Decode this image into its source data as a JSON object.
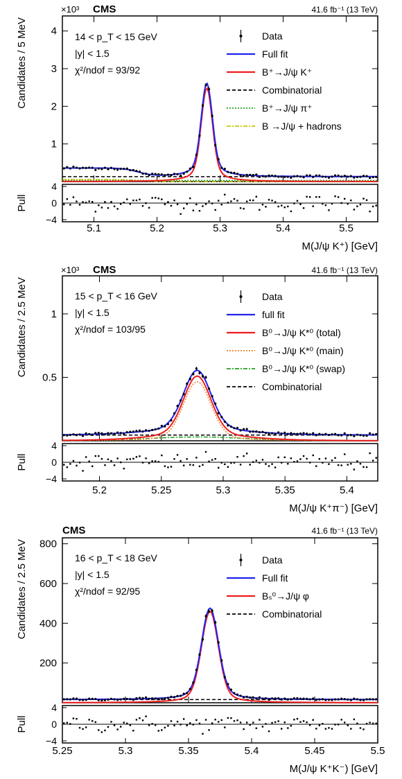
{
  "chart_data": [
    {
      "type": "line",
      "experiment": "CMS",
      "lumi": "41.6 fb⁻¹ (13 TeV)",
      "multiplier": "×10³",
      "kinematic": [
        "14 < p_T < 15 GeV",
        "|y| < 1.5",
        "χ²/ndof = 93/92"
      ],
      "ylabel": "Candidates / 5 MeV",
      "xlabel": "M(J/ψ K⁺) [GeV]",
      "pull_label": "Pull",
      "xlim": [
        5.05,
        5.55
      ],
      "ylim": [
        0,
        4.4
      ],
      "xticks": [
        "5.1",
        "5.2",
        "5.3",
        "5.4",
        "5.5"
      ],
      "yticks": [
        "1",
        "2",
        "3",
        "4"
      ],
      "pull_ticks": [
        "4",
        "0",
        "−4"
      ],
      "legend": [
        {
          "label": "Data",
          "style": "data",
          "color": "#000000"
        },
        {
          "label": "Full fit",
          "style": "solid",
          "color": "#1f22ee"
        },
        {
          "label": "B⁺→J/ψ K⁺",
          "style": "solid",
          "color": "#ee1c1c"
        },
        {
          "label": "Combinatorial",
          "style": "dashed",
          "color": "#000000"
        },
        {
          "label": "B⁺→J/ψ π⁺",
          "style": "dotted",
          "color": "#20a020"
        },
        {
          "label": "B →J/ψ + hadrons",
          "style": "dashdot",
          "color": "#c8c800"
        }
      ],
      "signal": {
        "mean": 5.279,
        "amplitude": 2.48,
        "sigma_core": 0.0085,
        "tail_width": 0.018
      },
      "background": {
        "combinatorial": 0.13,
        "shoulder_level": 0.25,
        "shoulder_edge": 5.17
      }
    },
    {
      "type": "line",
      "experiment": "CMS",
      "lumi": "41.6 fb⁻¹ (13 TeV)",
      "multiplier": "×10³",
      "kinematic": [
        "15 < p_T < 16 GeV",
        "|y| < 1.5",
        "χ²/ndof = 103/95"
      ],
      "ylabel": "Candidates / 2.5 MeV",
      "xlabel": "M(J/ψ K⁺π⁻) [GeV]",
      "pull_label": "Pull",
      "xlim": [
        5.17,
        5.425
      ],
      "ylim": [
        0,
        1.3
      ],
      "xticks": [
        "5.2",
        "5.25",
        "5.3",
        "5.35",
        "5.4"
      ],
      "yticks": [
        "0.5",
        "1"
      ],
      "pull_ticks": [
        "4",
        "0",
        "−4"
      ],
      "legend": [
        {
          "label": "Data",
          "style": "data",
          "color": "#000000"
        },
        {
          "label": "full fit",
          "style": "solid",
          "color": "#1f22ee"
        },
        {
          "label": "B⁰→J/ψ K*⁰ (total)",
          "style": "solid",
          "color": "#ee1c1c"
        },
        {
          "label": "B⁰→J/ψ K*⁰ (main)",
          "style": "dotted",
          "color": "#f08020"
        },
        {
          "label": "B⁰→J/ψ K*⁰ (swap)",
          "style": "dashdot",
          "color": "#20a020"
        },
        {
          "label": "Combinatorial",
          "style": "dashed",
          "color": "#000000"
        }
      ],
      "signal": {
        "mean": 5.279,
        "amplitude": 0.48,
        "sigma_core": 0.011,
        "tail_width": 0.016
      },
      "background": {
        "combinatorial": 0.045,
        "swap_amplitude": 0.03,
        "swap_sigma": 0.04
      }
    },
    {
      "type": "line",
      "experiment": "CMS",
      "lumi": "41.6 fb⁻¹ (13 TeV)",
      "multiplier": "",
      "kinematic": [
        "16 < p_T < 18 GeV",
        "|y| < 1.5",
        "χ²/ndof = 92/95"
      ],
      "ylabel": "Candidates / 2.5 MeV",
      "xlabel": "M(J/ψ K⁺K⁻) [GeV]",
      "pull_label": "Pull",
      "xlim": [
        5.25,
        5.5
      ],
      "ylim": [
        0,
        830
      ],
      "xticks": [
        "5.25",
        "5.3",
        "5.35",
        "5.4",
        "5.45",
        "5.5"
      ],
      "yticks": [
        "200",
        "400",
        "600",
        "800"
      ],
      "pull_ticks": [
        "4",
        "0",
        "−4"
      ],
      "legend": [
        {
          "label": "Data",
          "style": "data",
          "color": "#000000"
        },
        {
          "label": "Full fit",
          "style": "solid",
          "color": "#1f22ee"
        },
        {
          "label": "Bₛ⁰→J/ψ φ",
          "style": "solid",
          "color": "#ee1c1c"
        },
        {
          "label": "Combinatorial",
          "style": "dashed",
          "color": "#000000"
        }
      ],
      "signal": {
        "mean": 5.367,
        "amplitude": 460,
        "sigma_core": 0.0065,
        "tail_width": 0.011
      },
      "background": {
        "combinatorial": 16
      }
    }
  ]
}
